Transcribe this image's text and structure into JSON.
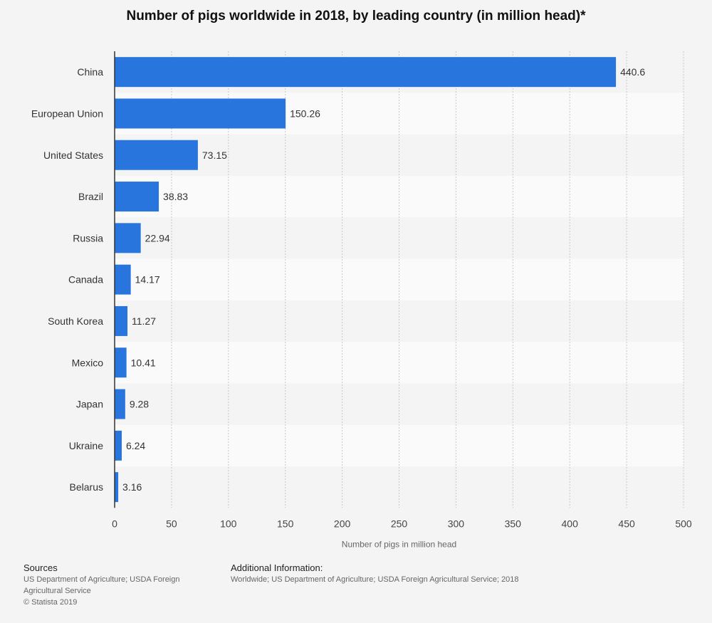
{
  "chart_data": {
    "type": "bar",
    "orientation": "horizontal",
    "title": "Number of pigs worldwide in 2018, by leading country (in million head)*",
    "xlabel": "Number of pigs in million head",
    "ylabel": "",
    "categories": [
      "China",
      "European Union",
      "United States",
      "Brazil",
      "Russia",
      "Canada",
      "South Korea",
      "Mexico",
      "Japan",
      "Ukraine",
      "Belarus"
    ],
    "values": [
      440.6,
      150.26,
      73.15,
      38.83,
      22.94,
      14.17,
      11.27,
      10.41,
      9.28,
      6.24,
      3.16
    ],
    "value_labels": [
      "440.6",
      "150.26",
      "73.15",
      "38.83",
      "22.94",
      "14.17",
      "11.27",
      "10.41",
      "9.28",
      "6.24",
      "3.16"
    ],
    "xlim": [
      0,
      500
    ],
    "xticks": [
      "0",
      "50",
      "100",
      "150",
      "200",
      "250",
      "300",
      "350",
      "400",
      "450",
      "500"
    ],
    "grid": true,
    "legend": false,
    "bar_color": "#2876dd"
  },
  "footer": {
    "sources_heading": "Sources",
    "sources_line1": "US Department of Agriculture; USDA Foreign",
    "sources_line2": "Agricultural Service",
    "copyright": "© Statista 2019",
    "additional_heading": "Additional Information:",
    "additional_text": "Worldwide; US Department of Agriculture; USDA Foreign Agricultural Service; 2018"
  }
}
